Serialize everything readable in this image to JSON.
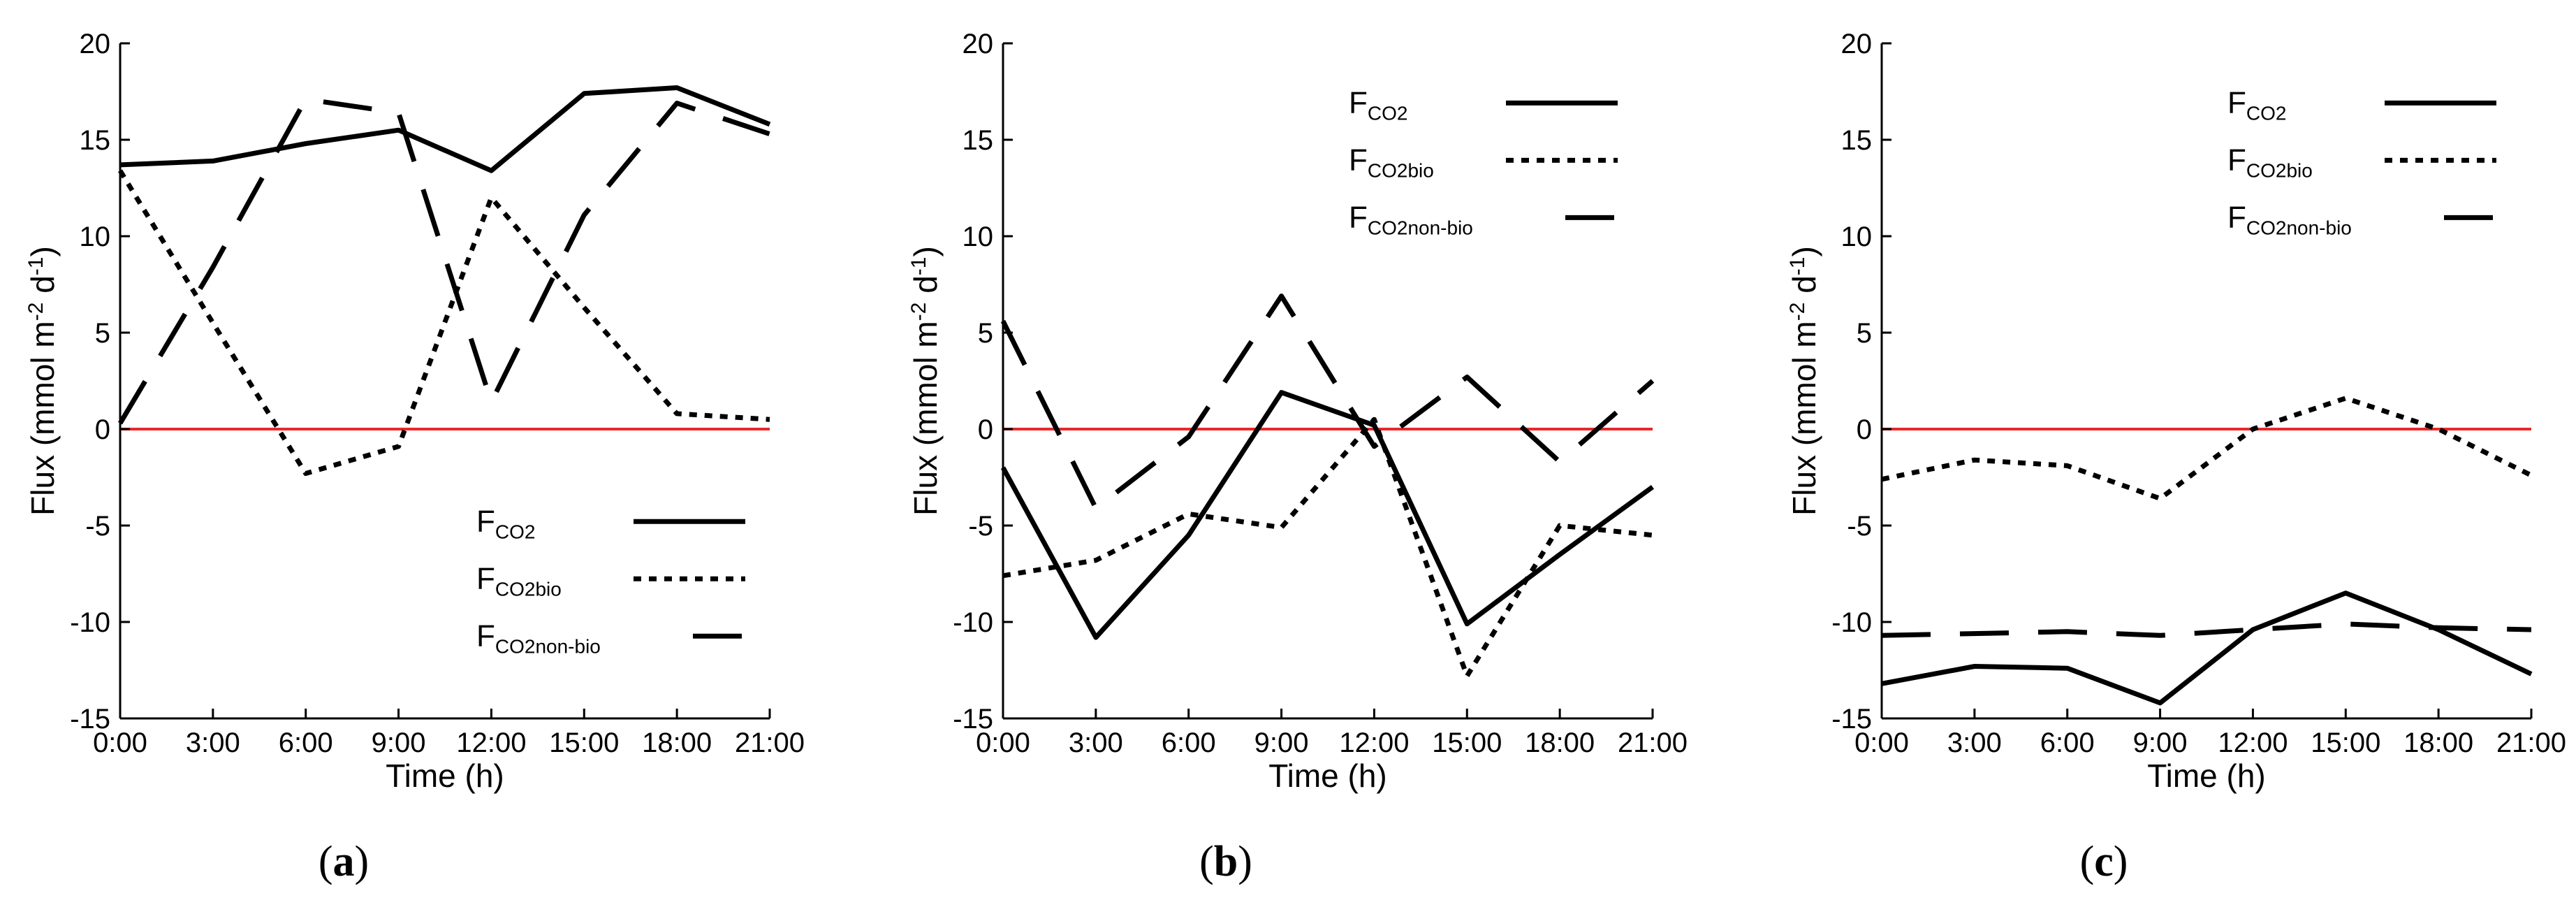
{
  "chart_data": [
    {
      "type": "line",
      "panel_label": "a",
      "xlabel": "Time (h)",
      "ylabel_main": "Flux (mmol m",
      "ylabel_sup1": "-2",
      "ylabel_mid": " d",
      "ylabel_sup2": "-1",
      "ylabel_end": ")",
      "categories": [
        "0:00",
        "3:00",
        "6:00",
        "9:00",
        "12:00",
        "15:00",
        "18:00",
        "21:00"
      ],
      "ylim": [
        -15,
        20
      ],
      "yticks": [
        -15,
        -10,
        -5,
        0,
        5,
        10,
        15,
        20
      ],
      "zero_line_color": "#e8292a",
      "legend_position": "bottom-right",
      "series": [
        {
          "name": "F",
          "sub": "CO2",
          "style": "solid",
          "values": [
            13.7,
            13.9,
            14.8,
            15.5,
            13.4,
            17.4,
            17.7,
            15.8
          ]
        },
        {
          "name": "F",
          "sub": "CO2bio",
          "style": "dotted",
          "values": [
            13.4,
            5.5,
            -2.3,
            -0.9,
            12.0,
            6.3,
            0.8,
            0.5
          ]
        },
        {
          "name": "F",
          "sub": "CO2non-bio",
          "style": "dashed",
          "values": [
            0.3,
            8.4,
            17.1,
            16.4,
            1.4,
            11.1,
            16.9,
            15.3
          ]
        }
      ]
    },
    {
      "type": "line",
      "panel_label": "b",
      "xlabel": "Time (h)",
      "ylabel_main": "Flux (mmol m",
      "ylabel_sup1": "-2",
      "ylabel_mid": " d",
      "ylabel_sup2": "-1",
      "ylabel_end": ")",
      "categories": [
        "0:00",
        "3:00",
        "6:00",
        "9:00",
        "12:00",
        "15:00",
        "18:00",
        "21:00"
      ],
      "ylim": [
        -15,
        20
      ],
      "yticks": [
        -15,
        -10,
        -5,
        0,
        5,
        10,
        15,
        20
      ],
      "zero_line_color": "#e8292a",
      "legend_position": "top-right",
      "series": [
        {
          "name": "F",
          "sub": "CO2",
          "style": "solid",
          "values": [
            -2.0,
            -10.8,
            -5.5,
            1.9,
            0.2,
            -10.1,
            -6.5,
            -3.0
          ]
        },
        {
          "name": "F",
          "sub": "CO2bio",
          "style": "dotted",
          "values": [
            -7.6,
            -6.8,
            -4.4,
            -5.1,
            0.5,
            -12.8,
            -5.0,
            -5.5
          ]
        },
        {
          "name": "F",
          "sub": "CO2non-bio",
          "style": "dashed",
          "values": [
            5.6,
            -4.1,
            -0.4,
            6.9,
            -0.9,
            2.7,
            -1.7,
            2.5
          ]
        }
      ]
    },
    {
      "type": "line",
      "panel_label": "c",
      "xlabel": "Time (h)",
      "ylabel_main": "Flux (mmol m",
      "ylabel_sup1": "-2",
      "ylabel_mid": " d",
      "ylabel_sup2": "-1",
      "ylabel_end": ")",
      "categories": [
        "0:00",
        "3:00",
        "6:00",
        "9:00",
        "12:00",
        "15:00",
        "18:00",
        "21:00"
      ],
      "ylim": [
        -15,
        20
      ],
      "yticks": [
        -15,
        -10,
        -5,
        0,
        5,
        10,
        15,
        20
      ],
      "zero_line_color": "#e8292a",
      "legend_position": "top-right",
      "series": [
        {
          "name": "F",
          "sub": "CO2",
          "style": "solid",
          "values": [
            -13.2,
            -12.3,
            -12.4,
            -14.2,
            -10.4,
            -8.5,
            -10.4,
            -12.7
          ]
        },
        {
          "name": "F",
          "sub": "CO2bio",
          "style": "dotted",
          "values": [
            -2.6,
            -1.6,
            -1.9,
            -3.6,
            0.0,
            1.6,
            0.0,
            -2.4
          ]
        },
        {
          "name": "F",
          "sub": "CO2non-bio",
          "style": "dashed",
          "values": [
            -10.7,
            -10.6,
            -10.5,
            -10.7,
            -10.4,
            -10.1,
            -10.3,
            -10.4
          ]
        }
      ]
    }
  ]
}
